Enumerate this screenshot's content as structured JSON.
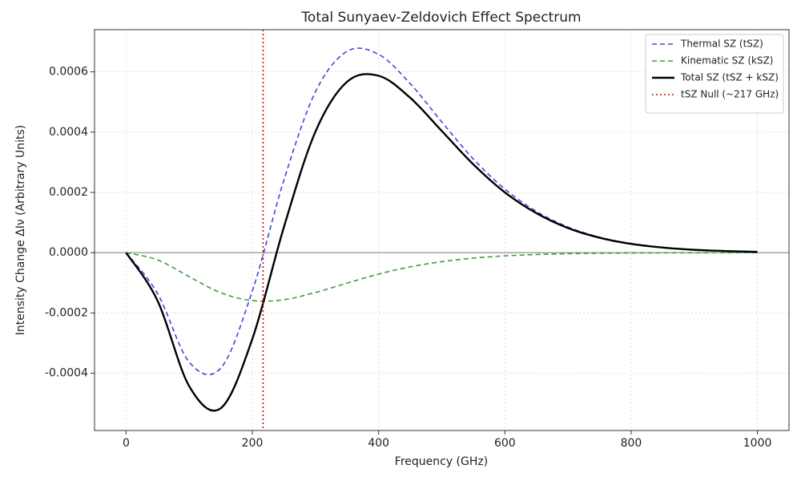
{
  "chart_data": {
    "type": "line",
    "title": "Total Sunyaev-Zeldovich Effect Spectrum",
    "xlabel": "Frequency (GHz)",
    "ylabel": "Intensity Change ΔIν (Arbitrary Units)",
    "x": [
      0,
      50,
      100,
      150,
      200,
      250,
      300,
      350,
      400,
      450,
      500,
      550,
      600,
      650,
      700,
      750,
      800,
      850,
      900,
      950,
      1000
    ],
    "series": [
      {
        "name": "Thermal SZ (tSZ)",
        "color": "#4444dd",
        "style": "dashed",
        "width": 1.6,
        "values": [
          0,
          -0.000136,
          -0.000363,
          -0.000383,
          -0.000127,
          0.000241,
          0.000534,
          0.000668,
          0.000658,
          0.000561,
          0.000434,
          0.000311,
          0.000211,
          0.000137,
          8.51e-05,
          5.14e-05,
          3.02e-05,
          1.74e-05,
          9.8e-06,
          5.4e-06,
          2.9e-06
        ]
      },
      {
        "name": "Kinematic SZ (kSZ)",
        "color": "#449944",
        "style": "dashed",
        "width": 1.6,
        "values": [
          0,
          -2.4e-05,
          -7.96e-05,
          -0.000133,
          -0.000159,
          -0.000156,
          -0.000132,
          -0.000101,
          -7.1e-05,
          -4.71e-05,
          -2.98e-05,
          -1.81e-05,
          -1.06e-05,
          -6.1e-06,
          -3.4e-06,
          -1.8e-06,
          -1e-06,
          -5e-07,
          -3e-07,
          -1e-07,
          -1e-07
        ]
      },
      {
        "name": "Total SZ (tSZ + kSZ)",
        "color": "#000000",
        "style": "solid",
        "width": 2.4,
        "values": [
          0,
          -0.00016,
          -0.000443,
          -0.000516,
          -0.000286,
          8.5e-05,
          0.000402,
          0.000567,
          0.000587,
          0.000514,
          0.000404,
          0.000293,
          0.0002,
          0.000131,
          8.17e-05,
          4.96e-05,
          2.92e-05,
          1.69e-05,
          9.5e-06,
          5.3e-06,
          2.8e-06
        ]
      }
    ],
    "vline": {
      "x": 217,
      "name": "tSZ Null (~217 GHz)",
      "color": "#dd0000",
      "style": "dotted"
    },
    "hline": {
      "y": 0,
      "color": "#888888"
    },
    "xlim": [
      -50,
      1050
    ],
    "ylim": [
      -0.00059,
      0.00074
    ],
    "xticks": [
      0,
      200,
      400,
      600,
      800,
      1000
    ],
    "yticks": [
      -0.0004,
      -0.0002,
      {
        "value": 0,
        "label": "0.0000"
      },
      0.0002,
      0.0004,
      0.0006
    ],
    "grid": true,
    "legend": "upper right"
  }
}
